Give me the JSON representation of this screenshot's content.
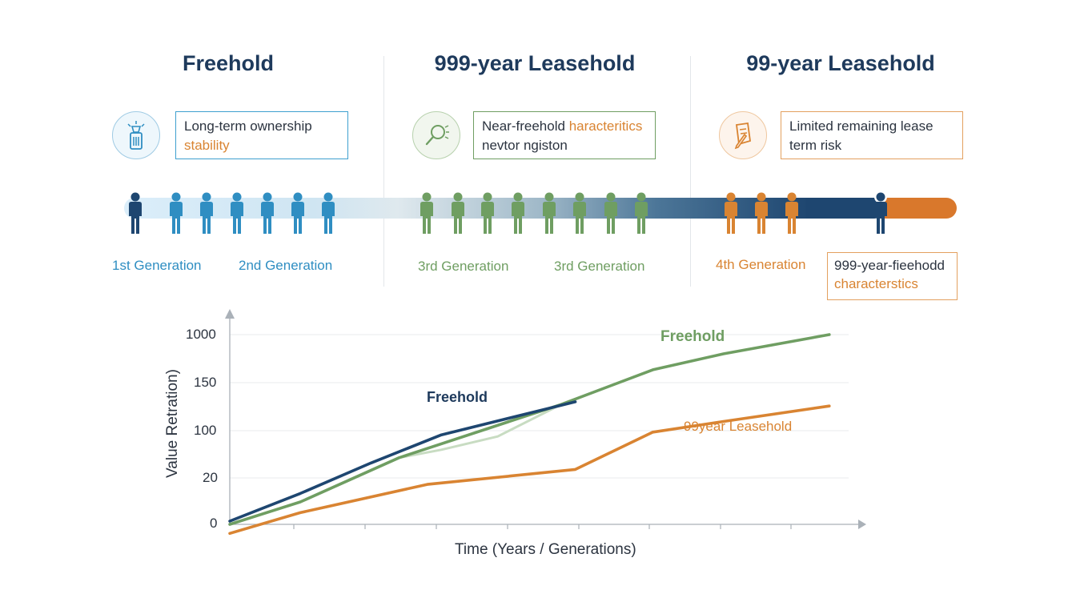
{
  "columns": [
    {
      "title": "Freehold",
      "note_line1": "Long-term ownership",
      "note_line2": "stability",
      "icon": "key-card-icon"
    },
    {
      "title": "999-year Leasehold",
      "note_line1": "Near-freehold",
      "note_line1_accent": "haracteritics",
      "note_line2": "nevtor ngiston",
      "icon": "magnifier-icon"
    },
    {
      "title": "99-year Leasehold",
      "note_line1": "Limited remaining lease",
      "note_line2": "term risk",
      "icon": "document-pen-icon"
    }
  ],
  "generations": [
    "1st Generation",
    "2nd Generation",
    "3rd Generation",
    "3rd Generation",
    "4th Generation"
  ],
  "callout": {
    "line1": "999-year-fieehodd",
    "line2": "characterstics"
  },
  "colors": {
    "navy": "#1e4670",
    "blue": "#2f8ec2",
    "green": "#6f9e62",
    "orange": "#d98432",
    "light_green": "#c8dcc2"
  },
  "chart_data": {
    "type": "line",
    "xlabel": "Time (Years / Generations)",
    "ylabel": "Value Retration)",
    "y_ticks": [
      "0",
      "20",
      "100",
      "150",
      "1000"
    ],
    "x": [
      0,
      1,
      2,
      3,
      4,
      5,
      6,
      7,
      8
    ],
    "series": [
      {
        "label": "Freehold",
        "color": "#1e4670",
        "x": [
          0,
          1,
          2,
          3,
          4.9
        ],
        "values": [
          6,
          58,
          115,
          168,
          230
        ]
      },
      {
        "label": "",
        "color": "#c8dcc2",
        "x": [
          2.4,
          3.0,
          3.8,
          4.7
        ],
        "values": [
          125,
          140,
          165,
          225
        ]
      },
      {
        "label": "Freehold",
        "color": "#6f9e62",
        "x": [
          0,
          1,
          2.4,
          4.7,
          6,
          7,
          8.5
        ],
        "values": [
          0,
          42,
          125,
          225,
          290,
          320,
          356
        ]
      },
      {
        "label": "99year Leasehold",
        "color": "#d98432",
        "x": [
          0,
          1,
          2.8,
          4.9,
          6,
          7,
          8.5
        ],
        "values": [
          -17,
          22,
          75,
          103,
          173,
          193,
          222
        ]
      }
    ]
  }
}
